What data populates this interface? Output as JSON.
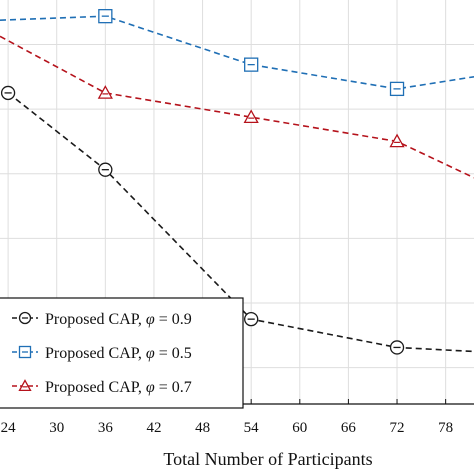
{
  "chart_data": {
    "type": "line",
    "xlabel": "Total Number of Participants",
    "ylabel": "",
    "title": "",
    "xlim": [
      23,
      81.5
    ],
    "ylim": [
      0,
      1
    ],
    "x_ticks": [
      24,
      30,
      36,
      42,
      48,
      54,
      60,
      66,
      72,
      78
    ],
    "grid": true,
    "legend_position": "bottom-left",
    "series": [
      {
        "name": "Proposed CAP, φ = 0.9",
        "label_prefix": "Proposed CAP, ",
        "label_symbol": "φ",
        "label_suffix": " = 0.9",
        "marker": "circle",
        "color": "#1a1a1a",
        "x": [
          24,
          36,
          54,
          72,
          81.5
        ],
        "y": [
          0.77,
          0.58,
          0.21,
          0.14,
          0.13
        ]
      },
      {
        "name": "Proposed CAP, φ = 0.5",
        "label_prefix": "Proposed CAP, ",
        "label_symbol": "φ",
        "label_suffix": " = 0.5",
        "marker": "square",
        "color": "#1f6fb5",
        "x": [
          23,
          36,
          54,
          72,
          81.5
        ],
        "y": [
          0.95,
          0.96,
          0.84,
          0.78,
          0.81
        ]
      },
      {
        "name": "Proposed CAP, φ = 0.7",
        "label_prefix": "Proposed CAP, ",
        "label_symbol": "φ",
        "label_suffix": " = 0.7",
        "marker": "triangle",
        "color": "#b5121b",
        "x": [
          23,
          36,
          54,
          72,
          81.5
        ],
        "y": [
          0.91,
          0.77,
          0.71,
          0.65,
          0.56
        ]
      }
    ]
  }
}
